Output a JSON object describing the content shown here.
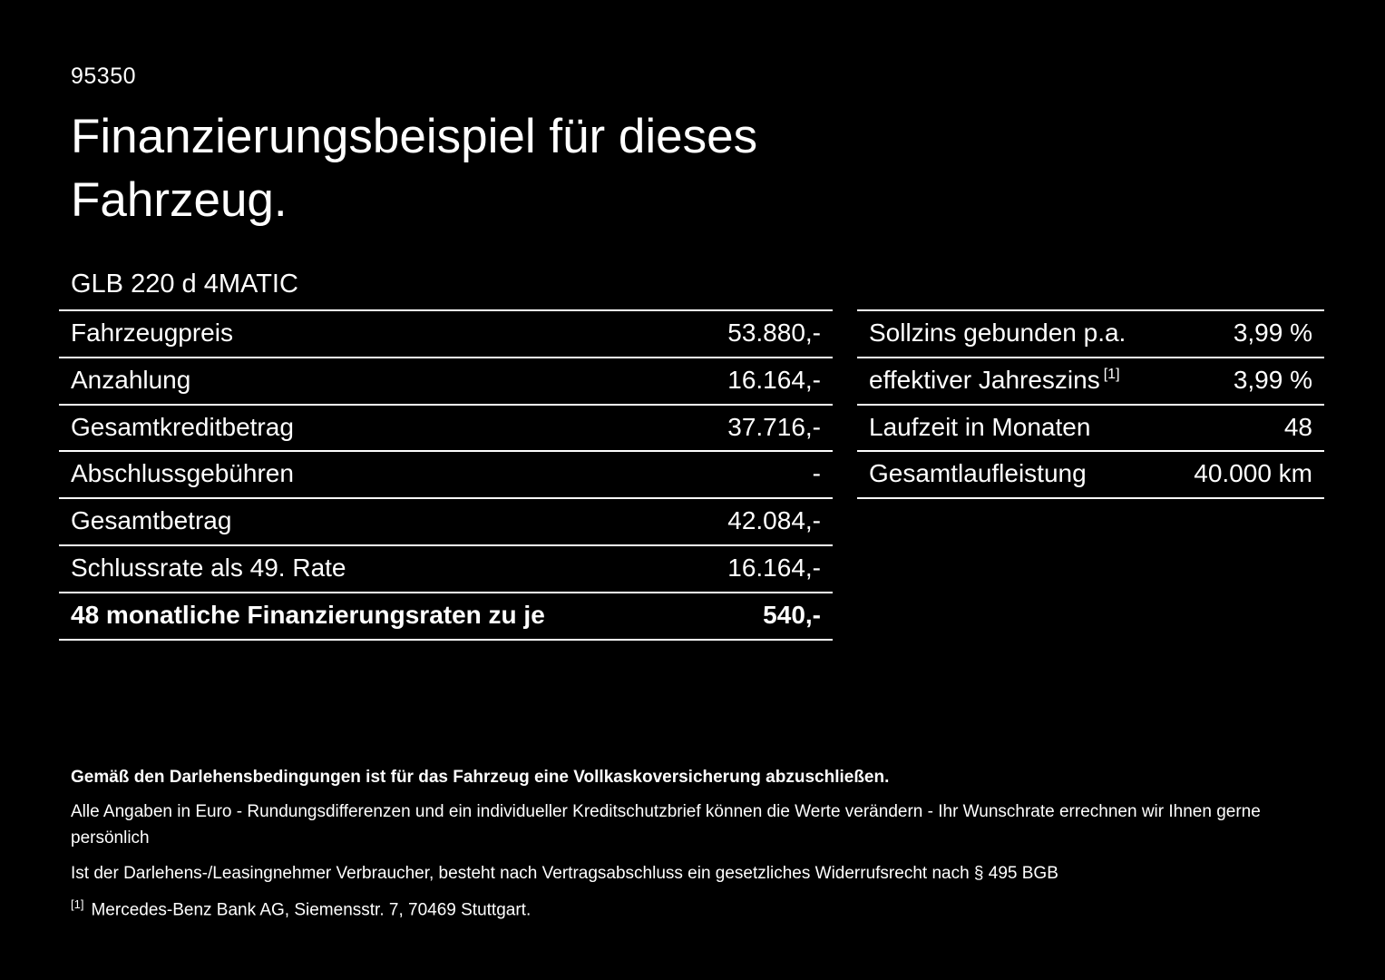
{
  "page": {
    "ref": "95350",
    "title": "Finanzierungsbeispiel für dieses Fahrzeug.",
    "model": "GLB 220 d 4MATIC"
  },
  "finance_table": {
    "rows": [
      {
        "label": "Fahrzeugpreis",
        "value": "53.880,-"
      },
      {
        "label": "Anzahlung",
        "value": "16.164,-"
      },
      {
        "label": "Gesamtkreditbetrag",
        "value": "37.716,-"
      },
      {
        "label": "Abschlussgebühren",
        "value": "-"
      },
      {
        "label": "Gesamtbetrag",
        "value": "42.084,-"
      },
      {
        "label": "Schlussrate als 49. Rate",
        "value": "16.164,-"
      },
      {
        "label": "48 monatliche Finanzierungsraten zu je",
        "value": "540,-"
      }
    ]
  },
  "conditions_table": {
    "rows": [
      {
        "label": "Sollzins gebunden p.a.",
        "value": "3,99 %"
      },
      {
        "label": "effektiver Jahreszins",
        "marker": "[1]",
        "value": "3,99 %"
      },
      {
        "label": "Laufzeit in Monaten",
        "value": "48"
      },
      {
        "label": "Gesamtlaufleistung",
        "value": "40.000 km"
      }
    ]
  },
  "footer": {
    "bold_note": "Gemäß den Darlehensbedingungen ist für das Fahrzeug eine Vollkaskoversicherung abzuschließen.",
    "note_line1": "Alle Angaben in Euro - Rundungsdifferenzen und ein individueller Kreditschutzbrief können die Werte verändern - Ihr Wunschrate errechnen wir Ihnen gerne persönlich",
    "note_line2": "Ist der Darlehens-/Leasingnehmer Verbraucher, besteht nach Vertragsabschluss ein gesetzliches Widerrufsrecht nach § 495 BGB",
    "footnote_marker": "[1]",
    "footnote_text": "Mercedes-Benz Bank AG, Siemensstr. 7, 70469 Stuttgart."
  }
}
